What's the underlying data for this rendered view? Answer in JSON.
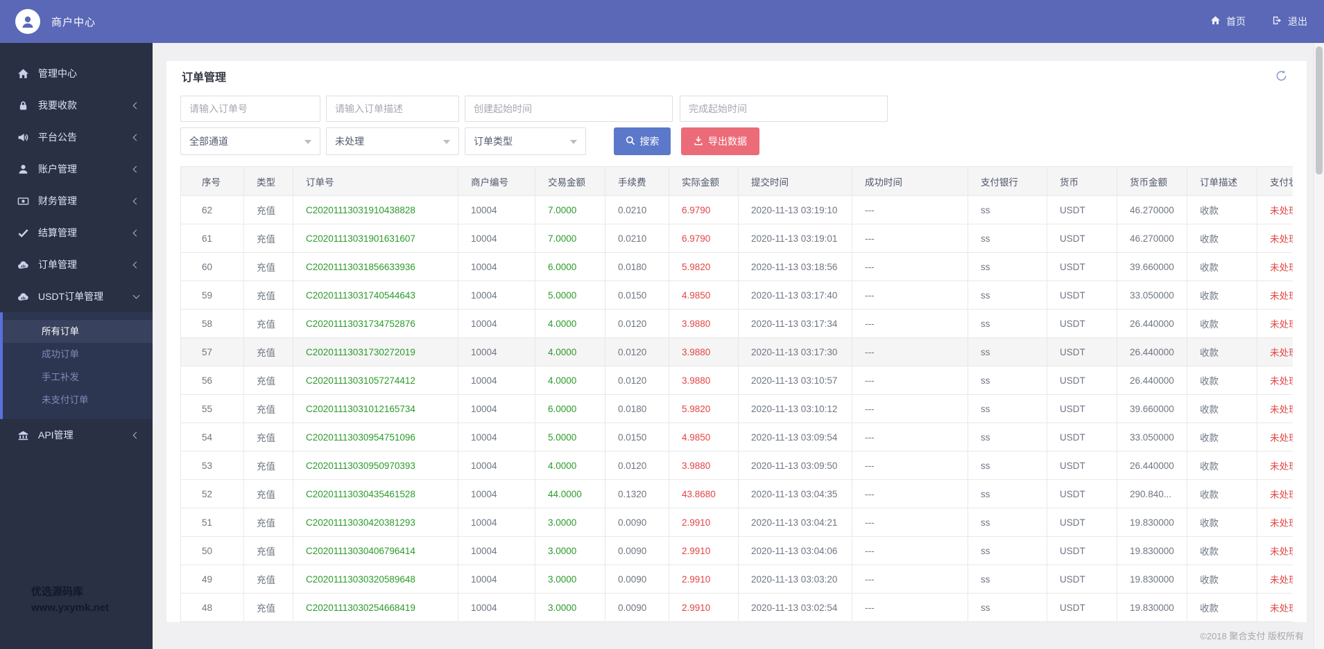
{
  "colors": {
    "header_bg": "#5a68b7",
    "sidebar_bg": "#293044",
    "submenu_stripe": "#5c6fde",
    "search_button": "#5b78ca",
    "export_button": "#ec6b78",
    "positive_green": "#2a9b2a",
    "negative_red": "#e24444"
  },
  "header": {
    "brand": "商户中心",
    "home": "首页",
    "logout": "退出"
  },
  "sidebar": {
    "items": [
      {
        "id": "dashboard",
        "icon": "home-icon",
        "label": "管理中心",
        "chevron": "none"
      },
      {
        "id": "collect",
        "icon": "lock-icon",
        "label": "我要收款",
        "chevron": "left"
      },
      {
        "id": "announce",
        "icon": "speaker-icon",
        "label": "平台公告",
        "chevron": "left"
      },
      {
        "id": "account",
        "icon": "user-icon",
        "label": "账户管理",
        "chevron": "left"
      },
      {
        "id": "finance",
        "icon": "money-icon",
        "label": "财务管理",
        "chevron": "left"
      },
      {
        "id": "settlement",
        "icon": "check-icon",
        "label": "结算管理",
        "chevron": "left"
      },
      {
        "id": "orders",
        "icon": "cloud-icon",
        "label": "订单管理",
        "chevron": "left"
      },
      {
        "id": "usdt-orders",
        "icon": "cloud-icon",
        "label": "USDT订单管理",
        "chevron": "down",
        "children": [
          {
            "id": "all-orders",
            "label": "所有订单",
            "active": true
          },
          {
            "id": "success-orders",
            "label": "成功订单",
            "active": false
          },
          {
            "id": "manual-resend",
            "label": "手工补发",
            "active": false
          },
          {
            "id": "unpaid-orders",
            "label": "未支付订单",
            "active": false
          }
        ]
      },
      {
        "id": "api",
        "icon": "bank-icon",
        "label": "API管理",
        "chevron": "left"
      }
    ],
    "watermark_line1": "优选源码库",
    "watermark_line2": "www.yxymk.net"
  },
  "page": {
    "title": "订单管理",
    "filters": {
      "order_no_placeholder": "请输入订单号",
      "order_desc_placeholder": "请输入订单描述",
      "create_time_placeholder": "创建起始时间",
      "finish_time_placeholder": "完成起始时间",
      "channel_value": "全部通道",
      "status_value": "未处理",
      "type_value": "订单类型",
      "search_label": "搜索",
      "export_label": "导出数据"
    },
    "table": {
      "columns": [
        "序号",
        "类型",
        "订单号",
        "商户编号",
        "交易金额",
        "手续费",
        "实际金额",
        "提交时间",
        "成功时间",
        "支付银行",
        "货币",
        "货币金额",
        "订单描述",
        "支付状态"
      ],
      "column_keys": [
        "seq",
        "type",
        "order_no",
        "merchant",
        "amount",
        "fee",
        "actual",
        "submitted",
        "succeeded",
        "bank",
        "currency",
        "currency_amount",
        "desc",
        "status"
      ],
      "highlighted_row_seq": "57",
      "rows": [
        {
          "seq": "62",
          "type": "充值",
          "order_no": "C20201113031910438828",
          "merchant": "10004",
          "amount": "7.0000",
          "fee": "0.0210",
          "actual": "6.9790",
          "submitted": "2020-11-13 03:19:10",
          "succeeded": "---",
          "bank": "ss",
          "currency": "USDT",
          "currency_amount": "46.270000",
          "desc": "收款",
          "status": "未处理"
        },
        {
          "seq": "61",
          "type": "充值",
          "order_no": "C20201113031901631607",
          "merchant": "10004",
          "amount": "7.0000",
          "fee": "0.0210",
          "actual": "6.9790",
          "submitted": "2020-11-13 03:19:01",
          "succeeded": "---",
          "bank": "ss",
          "currency": "USDT",
          "currency_amount": "46.270000",
          "desc": "收款",
          "status": "未处理"
        },
        {
          "seq": "60",
          "type": "充值",
          "order_no": "C20201113031856633936",
          "merchant": "10004",
          "amount": "6.0000",
          "fee": "0.0180",
          "actual": "5.9820",
          "submitted": "2020-11-13 03:18:56",
          "succeeded": "---",
          "bank": "ss",
          "currency": "USDT",
          "currency_amount": "39.660000",
          "desc": "收款",
          "status": "未处理"
        },
        {
          "seq": "59",
          "type": "充值",
          "order_no": "C20201113031740544643",
          "merchant": "10004",
          "amount": "5.0000",
          "fee": "0.0150",
          "actual": "4.9850",
          "submitted": "2020-11-13 03:17:40",
          "succeeded": "---",
          "bank": "ss",
          "currency": "USDT",
          "currency_amount": "33.050000",
          "desc": "收款",
          "status": "未处理"
        },
        {
          "seq": "58",
          "type": "充值",
          "order_no": "C20201113031734752876",
          "merchant": "10004",
          "amount": "4.0000",
          "fee": "0.0120",
          "actual": "3.9880",
          "submitted": "2020-11-13 03:17:34",
          "succeeded": "---",
          "bank": "ss",
          "currency": "USDT",
          "currency_amount": "26.440000",
          "desc": "收款",
          "status": "未处理"
        },
        {
          "seq": "57",
          "type": "充值",
          "order_no": "C20201113031730272019",
          "merchant": "10004",
          "amount": "4.0000",
          "fee": "0.0120",
          "actual": "3.9880",
          "submitted": "2020-11-13 03:17:30",
          "succeeded": "---",
          "bank": "ss",
          "currency": "USDT",
          "currency_amount": "26.440000",
          "desc": "收款",
          "status": "未处理"
        },
        {
          "seq": "56",
          "type": "充值",
          "order_no": "C20201113031057274412",
          "merchant": "10004",
          "amount": "4.0000",
          "fee": "0.0120",
          "actual": "3.9880",
          "submitted": "2020-11-13 03:10:57",
          "succeeded": "---",
          "bank": "ss",
          "currency": "USDT",
          "currency_amount": "26.440000",
          "desc": "收款",
          "status": "未处理"
        },
        {
          "seq": "55",
          "type": "充值",
          "order_no": "C20201113031012165734",
          "merchant": "10004",
          "amount": "6.0000",
          "fee": "0.0180",
          "actual": "5.9820",
          "submitted": "2020-11-13 03:10:12",
          "succeeded": "---",
          "bank": "ss",
          "currency": "USDT",
          "currency_amount": "39.660000",
          "desc": "收款",
          "status": "未处理"
        },
        {
          "seq": "54",
          "type": "充值",
          "order_no": "C20201113030954751096",
          "merchant": "10004",
          "amount": "5.0000",
          "fee": "0.0150",
          "actual": "4.9850",
          "submitted": "2020-11-13 03:09:54",
          "succeeded": "---",
          "bank": "ss",
          "currency": "USDT",
          "currency_amount": "33.050000",
          "desc": "收款",
          "status": "未处理"
        },
        {
          "seq": "53",
          "type": "充值",
          "order_no": "C20201113030950970393",
          "merchant": "10004",
          "amount": "4.0000",
          "fee": "0.0120",
          "actual": "3.9880",
          "submitted": "2020-11-13 03:09:50",
          "succeeded": "---",
          "bank": "ss",
          "currency": "USDT",
          "currency_amount": "26.440000",
          "desc": "收款",
          "status": "未处理"
        },
        {
          "seq": "52",
          "type": "充值",
          "order_no": "C20201113030435461528",
          "merchant": "10004",
          "amount": "44.0000",
          "fee": "0.1320",
          "actual": "43.8680",
          "submitted": "2020-11-13 03:04:35",
          "succeeded": "---",
          "bank": "ss",
          "currency": "USDT",
          "currency_amount": "290.840...",
          "desc": "收款",
          "status": "未处理"
        },
        {
          "seq": "51",
          "type": "充值",
          "order_no": "C20201113030420381293",
          "merchant": "10004",
          "amount": "3.0000",
          "fee": "0.0090",
          "actual": "2.9910",
          "submitted": "2020-11-13 03:04:21",
          "succeeded": "---",
          "bank": "ss",
          "currency": "USDT",
          "currency_amount": "19.830000",
          "desc": "收款",
          "status": "未处理"
        },
        {
          "seq": "50",
          "type": "充值",
          "order_no": "C20201113030406796414",
          "merchant": "10004",
          "amount": "3.0000",
          "fee": "0.0090",
          "actual": "2.9910",
          "submitted": "2020-11-13 03:04:06",
          "succeeded": "---",
          "bank": "ss",
          "currency": "USDT",
          "currency_amount": "19.830000",
          "desc": "收款",
          "status": "未处理"
        },
        {
          "seq": "49",
          "type": "充值",
          "order_no": "C20201113030320589648",
          "merchant": "10004",
          "amount": "3.0000",
          "fee": "0.0090",
          "actual": "2.9910",
          "submitted": "2020-11-13 03:03:20",
          "succeeded": "---",
          "bank": "ss",
          "currency": "USDT",
          "currency_amount": "19.830000",
          "desc": "收款",
          "status": "未处理"
        },
        {
          "seq": "48",
          "type": "充值",
          "order_no": "C20201113030254668419",
          "merchant": "10004",
          "amount": "3.0000",
          "fee": "0.0090",
          "actual": "2.9910",
          "submitted": "2020-11-13 03:02:54",
          "succeeded": "---",
          "bank": "ss",
          "currency": "USDT",
          "currency_amount": "19.830000",
          "desc": "收款",
          "status": "未处理"
        }
      ]
    }
  },
  "footer": {
    "copyright": "©2018 聚合支付 版权所有"
  }
}
